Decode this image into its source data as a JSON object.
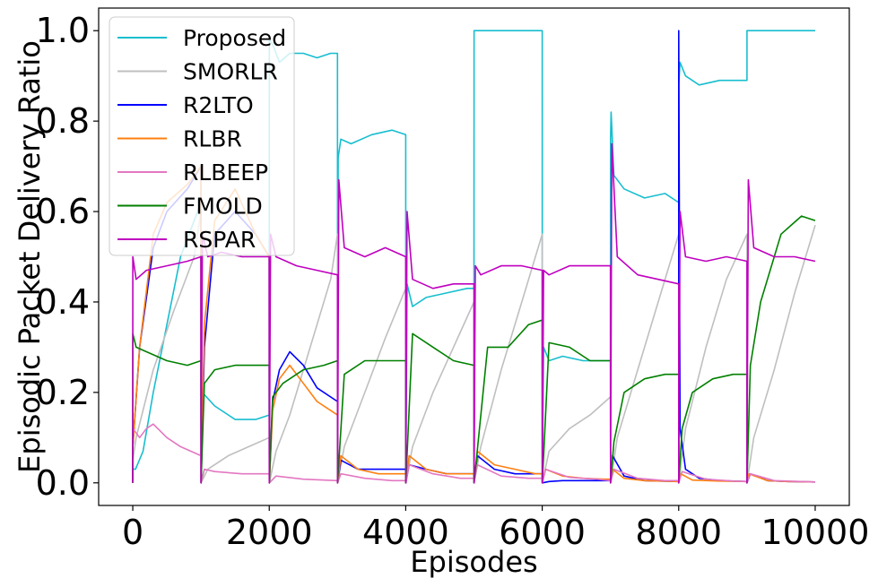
{
  "chart_data": {
    "type": "line",
    "title": "",
    "xlabel": "Episodes",
    "ylabel": "Episodic Packet Delivery Ratio",
    "xlim": [
      -500,
      10500
    ],
    "ylim": [
      -0.05,
      1.05
    ],
    "xticks": [
      0,
      2000,
      4000,
      6000,
      8000,
      10000
    ],
    "xtick_labels": [
      "0",
      "2000",
      "4000",
      "6000",
      "8000",
      "10000"
    ],
    "yticks": [
      0.0,
      0.2,
      0.4,
      0.6,
      0.8,
      1.0
    ],
    "ytick_labels": [
      "0.0",
      "0.2",
      "0.4",
      "0.6",
      "0.8",
      "1.0"
    ],
    "grid": false,
    "legend_position": "top-left",
    "series": [
      {
        "name": "Proposed",
        "color": "#17becf",
        "x": [
          0,
          1,
          40,
          150,
          300,
          500,
          700,
          1000,
          1001,
          1020,
          1200,
          1500,
          1800,
          2000,
          2001,
          2050,
          2150,
          2300,
          2500,
          2700,
          2900,
          3000,
          3001,
          3010,
          3050,
          3200,
          3500,
          3800,
          4000,
          4001,
          4020,
          4100,
          4300,
          4600,
          4900,
          5000,
          5001,
          6000,
          6001,
          6020,
          6100,
          6300,
          6600,
          6900,
          7000,
          7001,
          7010,
          7050,
          7200,
          7500,
          7800,
          8000,
          8001,
          8020,
          8100,
          8300,
          8600,
          8900,
          9000,
          9001,
          10000
        ],
        "values": [
          0.0,
          0.03,
          0.03,
          0.07,
          0.2,
          0.35,
          0.5,
          0.62,
          0.0,
          0.2,
          0.17,
          0.14,
          0.14,
          0.15,
          0.98,
          0.97,
          0.93,
          0.95,
          0.95,
          0.94,
          0.95,
          0.95,
          0.25,
          0.72,
          0.76,
          0.75,
          0.77,
          0.78,
          0.77,
          0.0,
          0.44,
          0.39,
          0.41,
          0.42,
          0.43,
          0.43,
          1.0,
          1.0,
          0.0,
          0.3,
          0.27,
          0.28,
          0.27,
          0.27,
          0.27,
          0.76,
          0.82,
          0.68,
          0.65,
          0.63,
          0.64,
          0.62,
          0.88,
          0.93,
          0.9,
          0.88,
          0.89,
          0.89,
          0.89,
          1.0,
          1.0
        ]
      },
      {
        "name": "SMORLR",
        "color": "#bfbfbf",
        "x": [
          0,
          1,
          50,
          300,
          600,
          900,
          1000,
          1001,
          1100,
          1400,
          1700,
          2000,
          2001,
          2100,
          2300,
          2600,
          2900,
          3000,
          3001,
          3100,
          3400,
          3700,
          4000,
          4001,
          4100,
          4400,
          4700,
          5000,
          5001,
          5100,
          5400,
          5700,
          6000,
          6001,
          6100,
          6400,
          6700,
          7000,
          7001,
          7100,
          7400,
          7700,
          8000,
          8001,
          8100,
          8400,
          8700,
          9000,
          9001,
          9100,
          9400,
          9700,
          10000
        ],
        "values": [
          0.0,
          0.05,
          0.1,
          0.25,
          0.38,
          0.5,
          0.6,
          0.0,
          0.03,
          0.06,
          0.08,
          0.1,
          0.0,
          0.07,
          0.15,
          0.3,
          0.45,
          0.55,
          0.0,
          0.08,
          0.2,
          0.32,
          0.43,
          0.0,
          0.08,
          0.2,
          0.3,
          0.4,
          0.0,
          0.08,
          0.25,
          0.4,
          0.55,
          0.0,
          0.07,
          0.12,
          0.15,
          0.19,
          0.0,
          0.1,
          0.25,
          0.4,
          0.55,
          0.0,
          0.12,
          0.3,
          0.45,
          0.55,
          0.0,
          0.1,
          0.25,
          0.42,
          0.57
        ]
      },
      {
        "name": "R2LTO",
        "color": "#0000ff",
        "x": [
          0,
          1,
          100,
          300,
          500,
          800,
          1000,
          1001,
          1050,
          1200,
          1500,
          1800,
          2000,
          2001,
          2050,
          2150,
          2300,
          2500,
          2700,
          3000,
          3001,
          3050,
          3300,
          3600,
          3900,
          4000,
          4001,
          4050,
          4300,
          4600,
          4900,
          5000,
          5001,
          5050,
          5300,
          5600,
          5900,
          6000,
          6001,
          6100,
          6300,
          6600,
          6900,
          7000,
          7001,
          7030,
          7200,
          7500,
          8000,
          8001,
          8020,
          8100,
          8300,
          8600,
          9000,
          9001,
          9050,
          9300,
          9600,
          10000
        ],
        "values": [
          0.0,
          0.08,
          0.3,
          0.52,
          0.6,
          0.65,
          0.7,
          0.0,
          0.3,
          0.55,
          0.6,
          0.55,
          0.5,
          0.0,
          0.18,
          0.25,
          0.29,
          0.26,
          0.21,
          0.18,
          0.0,
          0.05,
          0.03,
          0.03,
          0.03,
          0.03,
          0.0,
          0.04,
          0.03,
          0.02,
          0.02,
          0.02,
          0.0,
          0.06,
          0.03,
          0.02,
          0.02,
          0.02,
          0.0,
          0.003,
          0.005,
          0.005,
          0.005,
          0.005,
          0.0,
          0.06,
          0.015,
          0.005,
          0.003,
          1.0,
          0.12,
          0.03,
          0.01,
          0.005,
          0.003,
          0.0,
          0.02,
          0.005,
          0.003,
          0.002
        ]
      },
      {
        "name": "RLBR",
        "color": "#ff7f0e",
        "x": [
          0,
          1,
          100,
          300,
          500,
          800,
          1000,
          1001,
          1050,
          1200,
          1500,
          1800,
          2000,
          2001,
          2050,
          2150,
          2300,
          2500,
          2700,
          3000,
          3001,
          3050,
          3300,
          3600,
          3900,
          4000,
          4001,
          4050,
          4300,
          4600,
          4900,
          5000,
          5001,
          5050,
          5300,
          5600,
          5900,
          6000,
          6001,
          6050,
          6300,
          6600,
          6900,
          7000,
          7001,
          7030,
          7200,
          7500,
          8000,
          8001,
          8030,
          8200,
          8600,
          9000,
          9001,
          9030,
          9300,
          9600,
          10000
        ],
        "values": [
          0.0,
          0.08,
          0.3,
          0.55,
          0.62,
          0.66,
          0.7,
          0.0,
          0.35,
          0.58,
          0.65,
          0.55,
          0.5,
          0.0,
          0.16,
          0.23,
          0.26,
          0.22,
          0.18,
          0.15,
          0.0,
          0.06,
          0.03,
          0.02,
          0.02,
          0.02,
          0.0,
          0.06,
          0.03,
          0.02,
          0.02,
          0.02,
          0.0,
          0.07,
          0.04,
          0.03,
          0.02,
          0.02,
          0.0,
          0.03,
          0.015,
          0.01,
          0.008,
          0.008,
          0.0,
          0.03,
          0.01,
          0.005,
          0.003,
          0.0,
          0.02,
          0.006,
          0.004,
          0.003,
          0.0,
          0.02,
          0.005,
          0.003,
          0.002
        ]
      },
      {
        "name": "RLBEEP",
        "color": "#e377c2",
        "x": [
          0,
          1,
          100,
          200,
          300,
          500,
          700,
          1000,
          1001,
          1050,
          1200,
          1600,
          2000,
          2001,
          2100,
          2500,
          3000,
          3001,
          3050,
          3400,
          3800,
          4000,
          4001,
          4050,
          4400,
          4800,
          5000,
          5001,
          5050,
          5400,
          5800,
          6000,
          6001,
          6050,
          6400,
          6800,
          7000,
          7001,
          7050,
          7400,
          7800,
          8000,
          8001,
          8050,
          8400,
          8800,
          9000,
          9001,
          9050,
          9400,
          10000
        ],
        "values": [
          0.0,
          0.12,
          0.1,
          0.12,
          0.13,
          0.1,
          0.08,
          0.06,
          0.0,
          0.03,
          0.025,
          0.02,
          0.02,
          0.0,
          0.015,
          0.008,
          0.005,
          0.0,
          0.02,
          0.01,
          0.005,
          0.005,
          0.0,
          0.04,
          0.02,
          0.01,
          0.01,
          0.0,
          0.04,
          0.015,
          0.01,
          0.01,
          0.0,
          0.03,
          0.012,
          0.008,
          0.005,
          0.0,
          0.03,
          0.01,
          0.005,
          0.005,
          0.0,
          0.025,
          0.008,
          0.004,
          0.003,
          0.0,
          0.02,
          0.005,
          0.002
        ]
      },
      {
        "name": "FMOLD",
        "color": "#008000",
        "x": [
          0,
          1,
          50,
          200,
          500,
          800,
          1000,
          1001,
          1050,
          1200,
          1500,
          1800,
          2000,
          2001,
          2050,
          2200,
          2500,
          2800,
          3000,
          3001,
          3100,
          3400,
          3700,
          4000,
          4001,
          4100,
          4400,
          4700,
          5000,
          5001,
          5200,
          5500,
          5800,
          6000,
          6001,
          6100,
          6400,
          6700,
          7000,
          7001,
          7050,
          7200,
          7500,
          7800,
          8000,
          8001,
          8050,
          8200,
          8500,
          8800,
          9000,
          9001,
          9050,
          9200,
          9500,
          9800,
          10000
        ],
        "values": [
          0.0,
          0.33,
          0.3,
          0.29,
          0.27,
          0.26,
          0.27,
          0.0,
          0.22,
          0.25,
          0.26,
          0.26,
          0.26,
          0.0,
          0.19,
          0.22,
          0.25,
          0.26,
          0.27,
          0.0,
          0.24,
          0.27,
          0.27,
          0.27,
          0.0,
          0.33,
          0.3,
          0.27,
          0.26,
          0.0,
          0.3,
          0.3,
          0.35,
          0.36,
          0.0,
          0.31,
          0.3,
          0.27,
          0.27,
          0.0,
          0.09,
          0.2,
          0.23,
          0.24,
          0.24,
          0.0,
          0.12,
          0.2,
          0.23,
          0.24,
          0.24,
          0.0,
          0.26,
          0.4,
          0.55,
          0.59,
          0.58
        ]
      },
      {
        "name": "RSPAR",
        "color": "#bf00bf",
        "x": [
          0,
          1,
          50,
          200,
          500,
          800,
          1000,
          1001,
          1020,
          1100,
          1300,
          1600,
          1900,
          2000,
          2001,
          2020,
          2100,
          2400,
          2700,
          3000,
          3001,
          3020,
          3100,
          3400,
          3700,
          4000,
          4001,
          4020,
          4100,
          4400,
          4700,
          5000,
          5001,
          5020,
          5100,
          5400,
          5700,
          6000,
          6001,
          6020,
          6100,
          6400,
          6700,
          7000,
          7001,
          7020,
          7100,
          7400,
          7700,
          8000,
          8001,
          8020,
          8100,
          8400,
          8700,
          9000,
          9001,
          9020,
          9100,
          9400,
          9700,
          10000
        ],
        "values": [
          0.0,
          0.5,
          0.45,
          0.47,
          0.48,
          0.49,
          0.5,
          0.0,
          0.55,
          0.5,
          0.51,
          0.5,
          0.5,
          0.5,
          0.0,
          0.55,
          0.5,
          0.48,
          0.47,
          0.46,
          0.0,
          0.67,
          0.52,
          0.5,
          0.52,
          0.5,
          0.0,
          0.6,
          0.45,
          0.43,
          0.44,
          0.44,
          0.0,
          0.48,
          0.46,
          0.48,
          0.48,
          0.47,
          0.0,
          0.47,
          0.46,
          0.48,
          0.48,
          0.48,
          0.0,
          0.75,
          0.5,
          0.46,
          0.45,
          0.44,
          0.0,
          0.6,
          0.5,
          0.49,
          0.5,
          0.49,
          0.0,
          0.67,
          0.52,
          0.5,
          0.5,
          0.49
        ]
      }
    ]
  }
}
